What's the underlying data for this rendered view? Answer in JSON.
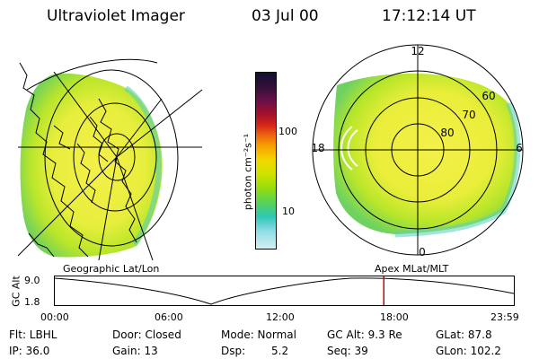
{
  "header": {
    "title": "Ultraviolet Imager",
    "date": "03 Jul 00",
    "time": "17:12:14 UT"
  },
  "colorbar": {
    "unit_label": "photon cm⁻²s⁻¹",
    "ticks": [
      "100",
      "10"
    ],
    "colors": [
      "#111133",
      "#33103a",
      "#6a1048",
      "#a8102a",
      "#d8261a",
      "#ee6a0c",
      "#f7a400",
      "#f2d800",
      "#cde300",
      "#93dc10",
      "#56d25c",
      "#2ec7b8",
      "#8fdde6",
      "#d4eff2"
    ]
  },
  "polar_plot": {
    "ring_labels": [
      "60",
      "70",
      "80"
    ],
    "mlt_labels": [
      "12",
      "18",
      "6",
      "0"
    ]
  },
  "map_labels": {
    "left": "Geographic Lat/Lon",
    "right": "Apex MLat/MLT"
  },
  "altitude_plot": {
    "ylabel": "GC Alt",
    "yticks": [
      "9.0",
      "1.8"
    ],
    "xticks": [
      "00:00",
      "06:00",
      "12:00",
      "18:00",
      "23:59"
    ],
    "current_time_hours": 17.2,
    "marker_color": "#cc0000"
  },
  "info": {
    "flt": "Flt: LBHL",
    "door": "Door: Closed",
    "mode": "Mode: Normal",
    "gcalt": "GC Alt: 9.3 Re",
    "glat": "GLat: 87.8",
    "ip": "IP: 36.0",
    "gain": "Gain: 13",
    "dsp_label": "Dsp:",
    "dsp_value": "5.2",
    "seq": "Seq: 39",
    "glon": "GLon: 102.2"
  }
}
